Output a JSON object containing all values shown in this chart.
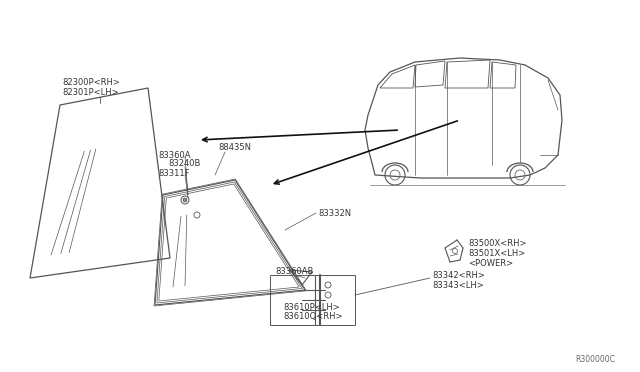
{
  "bg_color": "#ffffff",
  "line_color": "#555555",
  "text_color": "#333333",
  "fig_width": 6.4,
  "fig_height": 3.72,
  "labels": {
    "part_82300": "82300P<RH>",
    "part_82301": "82301P<LH>",
    "part_83360A": "83360A",
    "part_88435N": "88435N",
    "part_83240B": "83240B",
    "part_83311F": "83311F",
    "part_83332N": "83332N",
    "part_83360AB": "83360AB",
    "part_83500X": "83500X<RH>",
    "part_83501X": "83501X<LH>",
    "power": "<POWER>",
    "part_83342": "83342<RH>",
    "part_83343": "83343<LH>",
    "part_83610P": "83610P<LH>",
    "part_83610Q": "83610Q<RH>",
    "part_id": "R300000C"
  },
  "font_size": 6.0
}
